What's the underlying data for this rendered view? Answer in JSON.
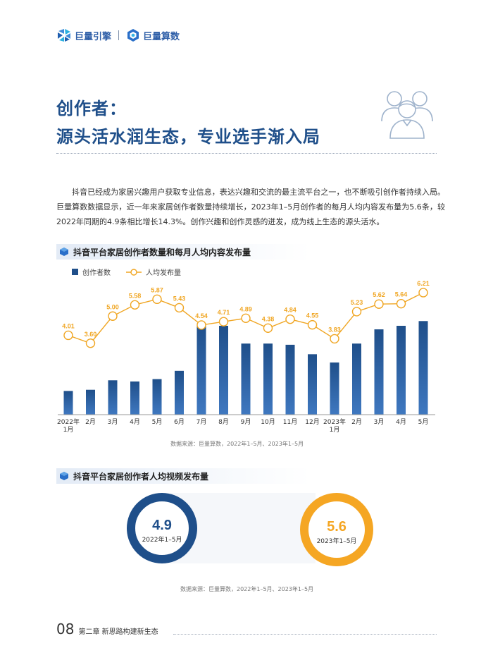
{
  "header": {
    "logo1": "巨量引擎",
    "logo2": "巨量算数"
  },
  "title": {
    "line1": "创作者：",
    "line2": "源头活水润生态，专业选手渐入局"
  },
  "intro": "抖音已经成为家居兴趣用户获取专业信息，表达兴趣和交流的最主流平台之一，也不断吸引创作者持续入局。巨量算数数据显示，近一年来家居创作者数量持续增长，2023年1–5月创作者的每月人均内容发布量为5.6条，较2022年同期的4.9条相比增长14.3%。创作兴趣和创作灵感的迸发，成为线上生态的源头活水。",
  "section1": {
    "title": "抖音平台家居创作者数量和每月人均内容发布量"
  },
  "section2": {
    "title": "抖音平台家居创作者人均视频发布量"
  },
  "legend": {
    "bar": "创作者数",
    "line": "人均发布量"
  },
  "source1": "数据来源：巨量算数，2022年1–5月、2023年1–5月",
  "source2": "数据来源：巨量算数，2022年1–5月、2023年1–5月",
  "colors": {
    "bar": "#1f4f8a",
    "line": "#f0a623",
    "ring1": "#1f4f8a",
    "ring2": "#f5a623",
    "title": "#1f4f8a"
  },
  "chart_data": {
    "type": "bar+line",
    "categories": [
      "2022年\n1月",
      "2月",
      "3月",
      "4月",
      "5月",
      "6月",
      "7月",
      "8月",
      "9月",
      "10月",
      "11月",
      "12月",
      "2023年\n1月",
      "2月",
      "3月",
      "4月",
      "5月"
    ],
    "series": [
      {
        "name": "创作者数",
        "type": "bar",
        "values": [
          20,
          21,
          29,
          28,
          30,
          37,
          77,
          75,
          60,
          60,
          59,
          51,
          44,
          60,
          72,
          75,
          79
        ],
        "ylim": [
          0,
          100
        ]
      },
      {
        "name": "人均发布量",
        "type": "line",
        "values": [
          4.01,
          3.6,
          5.0,
          5.58,
          5.87,
          5.43,
          4.54,
          4.71,
          4.89,
          4.38,
          4.84,
          4.55,
          3.83,
          5.23,
          5.62,
          5.64,
          6.21
        ],
        "labels": [
          "4.01",
          "3.60",
          "5.00",
          "5.58",
          "5.87",
          "5.43",
          "4.54",
          "4.71",
          "4.89",
          "4.38",
          "4.84",
          "4.55",
          "3.83",
          "5.23",
          "5.62",
          "5.64",
          "6.21"
        ],
        "ylim": [
          0,
          7
        ]
      }
    ],
    "title": "抖音平台家居创作者数量和每月人均内容发布量",
    "legend_position": "top-left",
    "grid": false
  },
  "rings": [
    {
      "value": "4.9",
      "label": "2022年1–5月"
    },
    {
      "value": "5.6",
      "label": "2023年1–5月"
    }
  ],
  "footer": {
    "page": "08",
    "chapter": "第二章 新思路构建新生态"
  }
}
